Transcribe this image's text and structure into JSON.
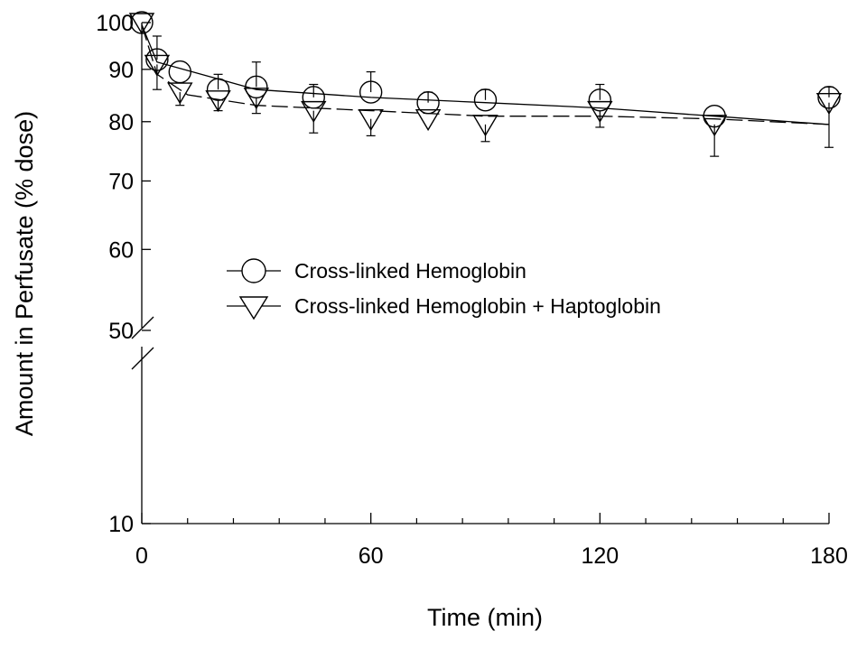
{
  "chart_data": {
    "type": "scatter",
    "xlabel": "Time (min)",
    "ylabel": "Amount in Perfusate (% dose)",
    "xlim": [
      0,
      180
    ],
    "ylim_lower": [
      10,
      50
    ],
    "ylim_upper": [
      50,
      100
    ],
    "axis_break": true,
    "x_ticks": [
      0,
      60,
      120,
      180
    ],
    "x_minor_ticks": [
      12,
      24,
      36,
      48,
      72,
      84,
      96,
      108,
      132,
      144,
      156,
      168
    ],
    "y_ticks": [
      10,
      50,
      60,
      70,
      80,
      90,
      100
    ],
    "legend_position": "center",
    "series": [
      {
        "name": "Cross-linked Hemoglobin",
        "marker": "circle",
        "line_style": "solid",
        "points": [
          {
            "x": 0,
            "y": 100,
            "err": 0
          },
          {
            "x": 4,
            "y": 92,
            "err": 5
          },
          {
            "x": 10,
            "y": 89.5,
            "err": 0
          },
          {
            "x": 20,
            "y": 86,
            "err": 3
          },
          {
            "x": 30,
            "y": 86.5,
            "err": 5
          },
          {
            "x": 45,
            "y": 84.5,
            "err": 2.5
          },
          {
            "x": 60,
            "y": 85.5,
            "err": 4
          },
          {
            "x": 75,
            "y": 83.5,
            "err": 2
          },
          {
            "x": 90,
            "y": 84,
            "err": 2
          },
          {
            "x": 120,
            "y": 84,
            "err": 3
          },
          {
            "x": 150,
            "y": 81,
            "err": 0
          },
          {
            "x": 180,
            "y": 84.5,
            "err": 2
          }
        ],
        "fit": [
          [
            0,
            99.5
          ],
          [
            4,
            91.5
          ],
          [
            30,
            86
          ],
          [
            60,
            84.5
          ],
          [
            90,
            83.5
          ],
          [
            120,
            82.5
          ],
          [
            150,
            81
          ],
          [
            180,
            79.5
          ]
        ]
      },
      {
        "name": "Cross-linked Hemoglobin + Haptoglobin",
        "marker": "triangle-down",
        "line_style": "dashed",
        "points": [
          {
            "x": 0,
            "y": 100,
            "err": 0
          },
          {
            "x": 4,
            "y": 91,
            "err": 5
          },
          {
            "x": 10,
            "y": 85.5,
            "err": 2.5
          },
          {
            "x": 20,
            "y": 84,
            "err": 2
          },
          {
            "x": 30,
            "y": 84.5,
            "err": 3
          },
          {
            "x": 45,
            "y": 82,
            "err": 4
          },
          {
            "x": 60,
            "y": 80.5,
            "err": 3
          },
          {
            "x": 75,
            "y": 80.5,
            "err": 0
          },
          {
            "x": 90,
            "y": 79.5,
            "err": 3
          },
          {
            "x": 120,
            "y": 82,
            "err": 3
          },
          {
            "x": 150,
            "y": 79.5,
            "err": 5.5
          },
          {
            "x": 180,
            "y": 83.5,
            "err": 8
          }
        ],
        "fit": [
          [
            0,
            99.5
          ],
          [
            4,
            89
          ],
          [
            12,
            85
          ],
          [
            30,
            83
          ],
          [
            60,
            82
          ],
          [
            90,
            81
          ],
          [
            120,
            81
          ],
          [
            150,
            80.5
          ],
          [
            180,
            79.5
          ]
        ]
      }
    ]
  }
}
